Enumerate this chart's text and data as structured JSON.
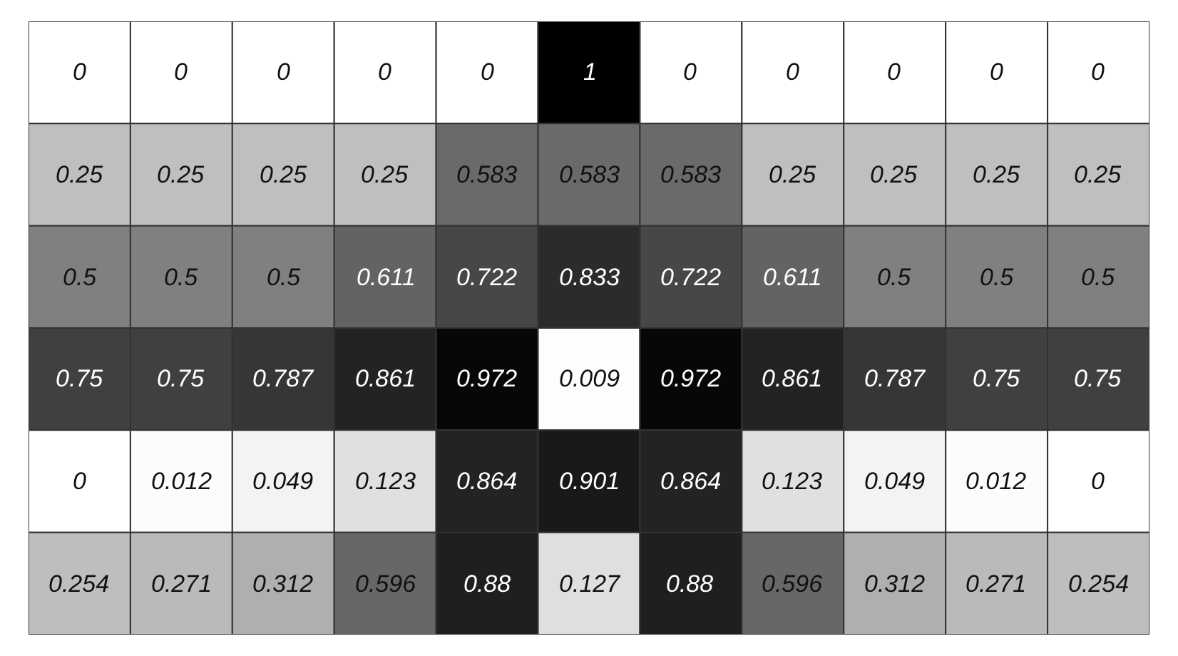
{
  "chart_data": {
    "type": "heatmap",
    "categories": [
      null,
      null,
      null,
      null,
      null,
      null,
      null,
      null,
      null,
      null,
      null
    ],
    "y_categories": [
      null,
      null,
      null,
      null,
      null,
      null
    ],
    "cells": [
      [
        0,
        0,
        0,
        0,
        0,
        1,
        0,
        0,
        0,
        0,
        0
      ],
      [
        0.25,
        0.25,
        0.25,
        0.25,
        0.583,
        0.583,
        0.583,
        0.25,
        0.25,
        0.25,
        0.25
      ],
      [
        0.5,
        0.5,
        0.5,
        0.611,
        0.722,
        0.833,
        0.722,
        0.611,
        0.5,
        0.5,
        0.5
      ],
      [
        0.75,
        0.75,
        0.787,
        0.861,
        0.972,
        0.009,
        0.972,
        0.861,
        0.787,
        0.75,
        0.75
      ],
      [
        0,
        0.012,
        0.049,
        0.123,
        0.864,
        0.901,
        0.864,
        0.123,
        0.049,
        0.012,
        0
      ],
      [
        0.254,
        0.271,
        0.312,
        0.596,
        0.88,
        0.127,
        0.88,
        0.596,
        0.312,
        0.271,
        0.254
      ]
    ],
    "data_labels": true
  }
}
